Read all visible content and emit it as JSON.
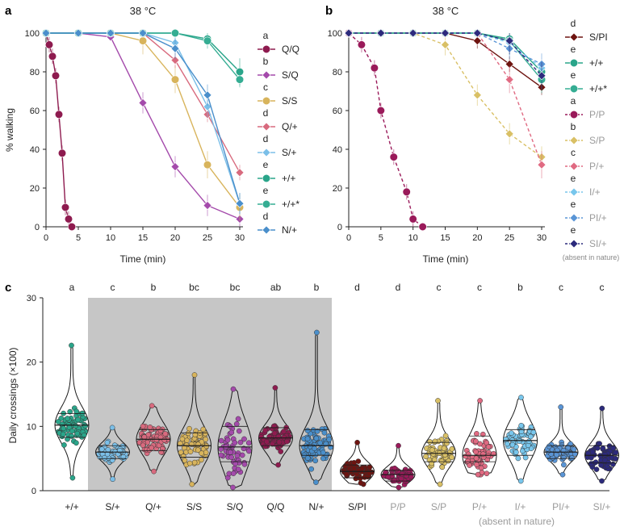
{
  "panels": {
    "a": "a",
    "b": "b",
    "c": "c"
  },
  "colors": {
    "QQ": "#8e1b4f",
    "SQ": "#a44aab",
    "SS": "#d8b45c",
    "Qp": "#d86a7e",
    "Sp": "#7bbfe8",
    "pp": "#2aa58a",
    "pps": "#35ad93",
    "Np": "#4a8fcb",
    "SPI": "#6e1410",
    "PP": "#9a1a5a",
    "SP": "#d9c065",
    "Pp": "#e06a82",
    "Ip": "#78c6ec",
    "PIp": "#5a95d6",
    "SIp": "#2c2a7c",
    "shade": "#c6c6c6",
    "grey_text": "#9a9a9a"
  },
  "chart_data": [
    {
      "id": "a",
      "type": "line",
      "title": "38 °C",
      "xlabel": "Time (min)",
      "ylabel": "% walking",
      "xlim": [
        0,
        30
      ],
      "ylim": [
        0,
        100
      ],
      "xticks": [
        0,
        5,
        10,
        15,
        20,
        25,
        30
      ],
      "yticks": [
        0,
        20,
        40,
        60,
        80,
        100
      ],
      "series": [
        {
          "name": "Q/Q",
          "letter": "a",
          "marker": "circle",
          "color": "QQ",
          "dashed": false,
          "grey": false,
          "x": [
            0,
            0.5,
            1,
            1.5,
            2,
            2.5,
            3,
            3.5,
            4
          ],
          "y": [
            100,
            94,
            88,
            78,
            58,
            38,
            10,
            4,
            0
          ]
        },
        {
          "name": "S/Q",
          "letter": "b",
          "marker": "diamond",
          "color": "SQ",
          "dashed": false,
          "grey": false,
          "x": [
            0,
            5,
            10,
            15,
            20,
            25,
            30
          ],
          "y": [
            100,
            100,
            98,
            64,
            31,
            11,
            4
          ]
        },
        {
          "name": "S/S",
          "letter": "c",
          "marker": "circle",
          "color": "SS",
          "dashed": false,
          "grey": false,
          "x": [
            0,
            5,
            10,
            15,
            20,
            25,
            30
          ],
          "y": [
            100,
            100,
            100,
            96,
            76,
            32,
            10
          ]
        },
        {
          "name": "Q/+",
          "letter": "d",
          "marker": "diamond",
          "color": "Qp",
          "dashed": false,
          "grey": false,
          "x": [
            0,
            5,
            10,
            15,
            20,
            25,
            30
          ],
          "y": [
            100,
            100,
            100,
            100,
            86,
            58,
            28
          ]
        },
        {
          "name": "S/+",
          "letter": "d",
          "marker": "diamond",
          "color": "Sp",
          "dashed": false,
          "grey": false,
          "x": [
            0,
            5,
            10,
            15,
            20,
            25,
            30
          ],
          "y": [
            100,
            100,
            100,
            100,
            95,
            62,
            12
          ]
        },
        {
          "name": "+/+",
          "letter": "e",
          "marker": "circle",
          "color": "pp",
          "dashed": false,
          "grey": false,
          "x": [
            0,
            5,
            10,
            15,
            20,
            25,
            30
          ],
          "y": [
            100,
            100,
            100,
            100,
            100,
            97,
            80
          ]
        },
        {
          "name": "+/+*",
          "letter": "e",
          "marker": "circle",
          "color": "pps",
          "dashed": false,
          "grey": false,
          "x": [
            0,
            5,
            10,
            15,
            20,
            25,
            30
          ],
          "y": [
            100,
            100,
            100,
            100,
            100,
            96,
            76
          ]
        },
        {
          "name": "N/+",
          "letter": "d",
          "marker": "diamond",
          "color": "Np",
          "dashed": false,
          "grey": false,
          "x": [
            0,
            5,
            10,
            15,
            20,
            25,
            30
          ],
          "y": [
            100,
            100,
            100,
            100,
            92,
            68,
            12
          ]
        }
      ]
    },
    {
      "id": "b",
      "type": "line",
      "title": "38 °C",
      "xlabel": "Time (min)",
      "ylabel": "",
      "xlim": [
        0,
        30
      ],
      "ylim": [
        0,
        100
      ],
      "xticks": [
        0,
        5,
        10,
        15,
        20,
        25,
        30
      ],
      "yticks": [
        0,
        20,
        40,
        60,
        80,
        100
      ],
      "legend_note": "(absent in nature)",
      "series": [
        {
          "name": "S/PI",
          "letter": "d",
          "marker": "diamond",
          "color": "SPI",
          "dashed": false,
          "grey": false,
          "x": [
            0,
            5,
            10,
            15,
            20,
            25,
            30
          ],
          "y": [
            100,
            100,
            100,
            100,
            96,
            84,
            72
          ]
        },
        {
          "name": "+/+",
          "letter": "e",
          "marker": "circle",
          "color": "pp",
          "dashed": false,
          "grey": false,
          "x": [
            0,
            5,
            10,
            15,
            20,
            25,
            30
          ],
          "y": [
            100,
            100,
            100,
            100,
            100,
            97,
            80
          ]
        },
        {
          "name": "+/+*",
          "letter": "e",
          "marker": "circle",
          "color": "pps",
          "dashed": false,
          "grey": false,
          "x": [
            0,
            5,
            10,
            15,
            20,
            25,
            30
          ],
          "y": [
            100,
            100,
            100,
            100,
            100,
            96,
            76
          ]
        },
        {
          "name": "P/P",
          "letter": "a",
          "marker": "circle",
          "color": "PP",
          "dashed": true,
          "grey": true,
          "x": [
            0,
            2,
            4,
            5,
            7,
            9,
            10,
            11.5
          ],
          "y": [
            100,
            94,
            82,
            60,
            36,
            18,
            4,
            0
          ]
        },
        {
          "name": "S/P",
          "letter": "b",
          "marker": "diamond",
          "color": "SP",
          "dashed": true,
          "grey": true,
          "x": [
            0,
            5,
            10,
            15,
            20,
            25,
            30
          ],
          "y": [
            100,
            100,
            100,
            94,
            68,
            48,
            36
          ]
        },
        {
          "name": "P/+",
          "letter": "c",
          "marker": "diamond",
          "color": "Pp",
          "dashed": true,
          "grey": true,
          "x": [
            0,
            5,
            10,
            15,
            20,
            25,
            30
          ],
          "y": [
            100,
            100,
            100,
            100,
            100,
            76,
            32
          ]
        },
        {
          "name": "I/+",
          "letter": "e",
          "marker": "diamond",
          "color": "Ip",
          "dashed": true,
          "grey": true,
          "x": [
            0,
            5,
            10,
            15,
            20,
            25,
            30
          ],
          "y": [
            100,
            100,
            100,
            100,
            100,
            95,
            82
          ]
        },
        {
          "name": "PI/+",
          "letter": "e",
          "marker": "diamond",
          "color": "PIp",
          "dashed": true,
          "grey": true,
          "x": [
            0,
            5,
            10,
            15,
            20,
            25,
            30
          ],
          "y": [
            100,
            100,
            100,
            100,
            100,
            92,
            84
          ]
        },
        {
          "name": "SI/+",
          "letter": "e",
          "marker": "diamond",
          "color": "SIp",
          "dashed": true,
          "grey": true,
          "x": [
            0,
            5,
            10,
            15,
            20,
            25,
            30
          ],
          "y": [
            100,
            100,
            100,
            100,
            100,
            96,
            78
          ]
        }
      ]
    },
    {
      "id": "c",
      "type": "violin",
      "title": "",
      "xlabel": "",
      "ylabel": "Daily crossings (×100)",
      "ylim": [
        0,
        30
      ],
      "yticks": [
        0,
        10,
        20,
        30
      ],
      "shaded_categories": [
        "S/+",
        "Q/+",
        "S/S",
        "S/Q",
        "Q/Q",
        "N/+"
      ],
      "note": "(absent in nature)",
      "categories": [
        {
          "name": "+/+",
          "letter": "a",
          "color": "pp",
          "grey": false,
          "min": 2.0,
          "max": 22.6,
          "median": 10.2,
          "q1": 8.3,
          "q3": 12.0,
          "n": 70
        },
        {
          "name": "S/+",
          "letter": "c",
          "color": "Sp",
          "grey": false,
          "min": 1.8,
          "max": 9.8,
          "median": 6.0,
          "q1": 5.0,
          "q3": 7.0,
          "n": 65
        },
        {
          "name": "Q/+",
          "letter": "b",
          "color": "Qp",
          "grey": false,
          "min": 3.0,
          "max": 13.2,
          "median": 8.0,
          "q1": 6.2,
          "q3": 9.5,
          "n": 70
        },
        {
          "name": "S/S",
          "letter": "bc",
          "color": "SS",
          "grey": false,
          "min": 1.0,
          "max": 18.0,
          "median": 7.0,
          "q1": 5.2,
          "q3": 9.0,
          "n": 65
        },
        {
          "name": "S/Q",
          "letter": "bc",
          "color": "SQ",
          "grey": false,
          "min": 0.5,
          "max": 15.8,
          "median": 6.8,
          "q1": 4.5,
          "q3": 10.0,
          "n": 60
        },
        {
          "name": "Q/Q",
          "letter": "ab",
          "color": "QQ",
          "grey": false,
          "min": 4.0,
          "max": 16.0,
          "median": 8.2,
          "q1": 7.0,
          "q3": 9.8,
          "n": 70
        },
        {
          "name": "N/+",
          "letter": "b",
          "color": "Np",
          "grey": false,
          "min": 1.3,
          "max": 24.6,
          "median": 7.0,
          "q1": 5.5,
          "q3": 9.5,
          "n": 75
        },
        {
          "name": "S/PI",
          "letter": "d",
          "color": "SPI",
          "grey": false,
          "min": 1.0,
          "max": 7.5,
          "median": 3.0,
          "q1": 2.0,
          "q3": 4.0,
          "n": 60
        },
        {
          "name": "P/P",
          "letter": "d",
          "color": "PP",
          "grey": true,
          "min": 0.5,
          "max": 7.0,
          "median": 2.5,
          "q1": 1.5,
          "q3": 3.2,
          "n": 60
        },
        {
          "name": "S/P",
          "letter": "c",
          "color": "SP",
          "grey": true,
          "min": 1.0,
          "max": 14.0,
          "median": 5.8,
          "q1": 4.5,
          "q3": 7.5,
          "n": 65
        },
        {
          "name": "P/+",
          "letter": "c",
          "color": "Pp",
          "grey": true,
          "min": 2.5,
          "max": 14.0,
          "median": 5.5,
          "q1": 4.5,
          "q3": 8.5,
          "n": 70
        },
        {
          "name": "I/+",
          "letter": "b",
          "color": "Ip",
          "grey": true,
          "min": 1.5,
          "max": 14.5,
          "median": 7.8,
          "q1": 5.5,
          "q3": 9.5,
          "n": 70
        },
        {
          "name": "PI/+",
          "letter": "c",
          "color": "PIp",
          "grey": true,
          "min": 2.5,
          "max": 13.0,
          "median": 6.0,
          "q1": 5.0,
          "q3": 7.0,
          "n": 70
        },
        {
          "name": "SI/+",
          "letter": "c",
          "color": "SIp",
          "grey": true,
          "min": 1.5,
          "max": 12.8,
          "median": 5.5,
          "q1": 4.3,
          "q3": 7.0,
          "n": 65
        }
      ]
    }
  ]
}
